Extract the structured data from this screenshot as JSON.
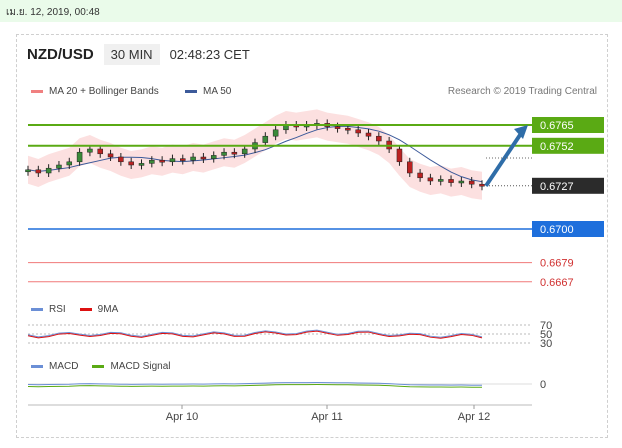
{
  "date_bar": "เม.ย. 12, 2019, 00:48",
  "header": {
    "pair": "NZD/USD",
    "interval": "30 MIN",
    "time": "02:48:23 CET"
  },
  "legend": {
    "ma20": "MA 20 + Bollinger Bands",
    "ma50": "MA 50",
    "research": "Research © 2019 Trading Central",
    "rsi": "RSI",
    "rsi_ma": "9MA",
    "macd": "MACD",
    "macd_signal": "MACD Signal"
  },
  "colors": {
    "green": "#5aaa14",
    "blue": "#1e6fdc",
    "red": "#f07878",
    "dark": "#2b2b2b",
    "arrow": "#2f6da8",
    "ma20": "#f08080",
    "ma50": "#3c5a9a",
    "bands": "#fbd3d3"
  },
  "chart_data": {
    "type": "line",
    "instrument": "NZD/USD",
    "x_ticks": [
      "Apr 10",
      "Apr 11",
      "Apr 12"
    ],
    "price_levels": [
      {
        "value": 0.6765,
        "label": "0.6765",
        "style": "green-box"
      },
      {
        "value": 0.6752,
        "label": "0.6752",
        "style": "green-box"
      },
      {
        "value": 0.6727,
        "label": "0.6727",
        "style": "dark-box"
      },
      {
        "value": 0.67,
        "label": "0.6700",
        "style": "blue-box"
      },
      {
        "value": 0.6679,
        "label": "0.6679",
        "style": "red-text"
      },
      {
        "value": 0.6667,
        "label": "0.6667",
        "style": "red-text"
      }
    ],
    "rsi_levels": [
      "70",
      "50",
      "30"
    ],
    "macd_level": "0",
    "price_path": [
      0.6737,
      0.6735,
      0.6738,
      0.674,
      0.6742,
      0.6748,
      0.675,
      0.6747,
      0.6745,
      0.6742,
      0.674,
      0.6741,
      0.6743,
      0.6742,
      0.6744,
      0.6743,
      0.6745,
      0.6744,
      0.6746,
      0.6748,
      0.6747,
      0.675,
      0.6754,
      0.6758,
      0.6762,
      0.6765,
      0.6764,
      0.6765,
      0.6766,
      0.6764,
      0.6763,
      0.6762,
      0.676,
      0.6758,
      0.6755,
      0.675,
      0.6742,
      0.6735,
      0.6732,
      0.673,
      0.6731,
      0.6729,
      0.673,
      0.6728,
      0.6727
    ],
    "forecast": {
      "from": 0.6727,
      "to": 0.6765
    }
  }
}
